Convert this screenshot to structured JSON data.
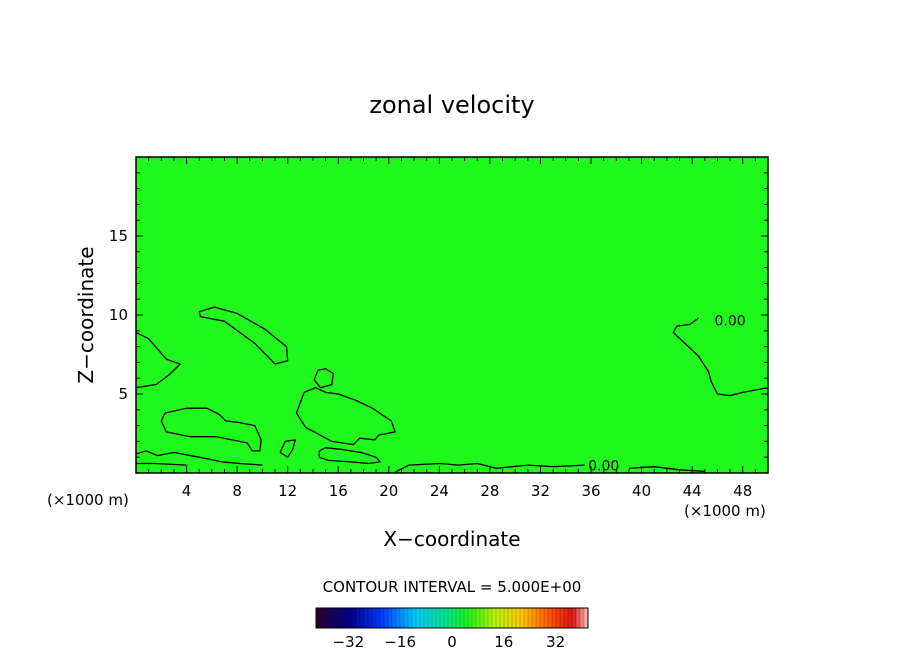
{
  "chart_data": {
    "type": "heatmap",
    "title": "zonal velocity",
    "xlabel": "X−coordinate",
    "ylabel": "Z−coordinate",
    "x_unit_left": "(×1000 m)",
    "x_unit_right": "(×1000 m)",
    "xlim": [
      0,
      50
    ],
    "ylim": [
      0,
      20
    ],
    "x_ticks": [
      4,
      8,
      12,
      16,
      20,
      24,
      28,
      32,
      36,
      40,
      44,
      48
    ],
    "x_tick_labels": [
      "4",
      "8",
      "12",
      "16",
      "20",
      "24",
      "28",
      "32",
      "36",
      "40",
      "44",
      "48"
    ],
    "y_ticks": [
      5,
      10,
      15
    ],
    "y_tick_labels": [
      "5",
      "10",
      "15"
    ],
    "contour_labels": [
      {
        "text": "0.00",
        "x": 47.0,
        "z": 9.6
      },
      {
        "text": "0.00",
        "x": 37.0,
        "z": 0.4
      }
    ],
    "contours": [
      [
        [
          0,
          8.9
        ],
        [
          1.0,
          8.5
        ],
        [
          2.4,
          7.2
        ],
        [
          3.5,
          6.9
        ],
        [
          2.6,
          6.2
        ],
        [
          1.6,
          5.6
        ],
        [
          0,
          5.4
        ]
      ],
      [
        [
          5.0,
          10.2
        ],
        [
          6.2,
          10.5
        ],
        [
          8.0,
          10.1
        ],
        [
          10.2,
          9.1
        ],
        [
          11.9,
          8.0
        ],
        [
          12.0,
          7.1
        ],
        [
          11.0,
          6.9
        ],
        [
          9.4,
          8.2
        ],
        [
          7.0,
          9.6
        ],
        [
          5.1,
          9.9
        ],
        [
          5.0,
          10.2
        ]
      ],
      [
        [
          15.0,
          6.6
        ],
        [
          15.6,
          6.3
        ],
        [
          15.5,
          5.6
        ],
        [
          14.6,
          5.4
        ],
        [
          14.1,
          5.9
        ],
        [
          14.4,
          6.5
        ],
        [
          15.0,
          6.6
        ]
      ],
      [
        [
          13.3,
          5.1
        ],
        [
          14.2,
          5.4
        ],
        [
          15.0,
          5.1
        ],
        [
          16.0,
          5.0
        ],
        [
          17.4,
          4.6
        ],
        [
          18.7,
          4.1
        ],
        [
          20.2,
          3.3
        ],
        [
          20.5,
          2.6
        ],
        [
          19.2,
          2.4
        ],
        [
          18.9,
          2.1
        ],
        [
          17.7,
          2.2
        ],
        [
          17.2,
          1.8
        ],
        [
          15.5,
          2.0
        ],
        [
          13.4,
          2.9
        ],
        [
          12.7,
          3.8
        ],
        [
          13.3,
          5.1
        ]
      ],
      [
        [
          2.3,
          3.8
        ],
        [
          4.0,
          4.1
        ],
        [
          5.6,
          4.1
        ],
        [
          6.6,
          3.7
        ],
        [
          7.1,
          3.3
        ],
        [
          8.1,
          3.2
        ],
        [
          9.4,
          3.0
        ],
        [
          9.9,
          2.1
        ],
        [
          9.8,
          1.4
        ],
        [
          9.2,
          1.4
        ],
        [
          8.8,
          1.9
        ],
        [
          6.4,
          2.3
        ],
        [
          4.3,
          2.3
        ],
        [
          2.4,
          2.6
        ],
        [
          2.0,
          3.3
        ],
        [
          2.3,
          3.8
        ]
      ],
      [
        [
          11.4,
          1.3
        ],
        [
          11.8,
          2.0
        ],
        [
          12.6,
          2.1
        ],
        [
          12.4,
          1.5
        ],
        [
          12.0,
          1.0
        ],
        [
          11.4,
          1.3
        ]
      ],
      [
        [
          0,
          1.2
        ],
        [
          0.8,
          1.4
        ],
        [
          1.7,
          1.1
        ],
        [
          3.0,
          1.3
        ],
        [
          5.0,
          1.0
        ],
        [
          6.8,
          0.7
        ],
        [
          8.2,
          0.6
        ],
        [
          10.0,
          0.5
        ]
      ],
      [
        [
          0,
          0.6
        ],
        [
          1.5,
          0.6
        ],
        [
          4.0,
          0.5
        ]
      ],
      [
        [
          14.5,
          1.4
        ],
        [
          15.0,
          1.6
        ],
        [
          16.2,
          1.5
        ],
        [
          17.8,
          1.3
        ],
        [
          19.0,
          1.0
        ],
        [
          19.3,
          0.7
        ],
        [
          18.4,
          0.6
        ],
        [
          17.0,
          0.7
        ],
        [
          15.2,
          0.8
        ],
        [
          14.5,
          1.0
        ],
        [
          14.5,
          1.4
        ]
      ],
      [
        [
          20.5,
          0.05
        ],
        [
          21.6,
          0.5
        ],
        [
          24.0,
          0.6
        ],
        [
          25.5,
          0.5
        ],
        [
          27.0,
          0.6
        ],
        [
          28.5,
          0.3
        ],
        [
          31.0,
          0.5
        ],
        [
          33.0,
          0.4
        ],
        [
          35.5,
          0.5
        ]
      ],
      [
        [
          39.0,
          0.3
        ],
        [
          41.0,
          0.4
        ],
        [
          43.0,
          0.2
        ],
        [
          45.0,
          0.1
        ]
      ],
      [
        [
          44.5,
          9.8
        ],
        [
          43.8,
          9.4
        ],
        [
          42.8,
          9.3
        ],
        [
          42.5,
          8.9
        ],
        [
          43.7,
          8.0
        ],
        [
          44.5,
          7.4
        ],
        [
          45.3,
          6.4
        ],
        [
          45.5,
          5.8
        ],
        [
          46.0,
          5.0
        ],
        [
          47.0,
          4.9
        ],
        [
          48.0,
          5.1
        ],
        [
          50.0,
          5.4
        ]
      ]
    ],
    "colorbar": {
      "label": "CONTOUR INTERVAL = 5.000E+00",
      "min": -42,
      "max": 42,
      "ticks": [
        -32,
        -16,
        0,
        16,
        32
      ],
      "tick_labels": [
        "−32",
        "−16",
        "0",
        "16",
        "32"
      ]
    },
    "colors": {
      "field": "#1EF81A",
      "contour": "#000000"
    }
  }
}
